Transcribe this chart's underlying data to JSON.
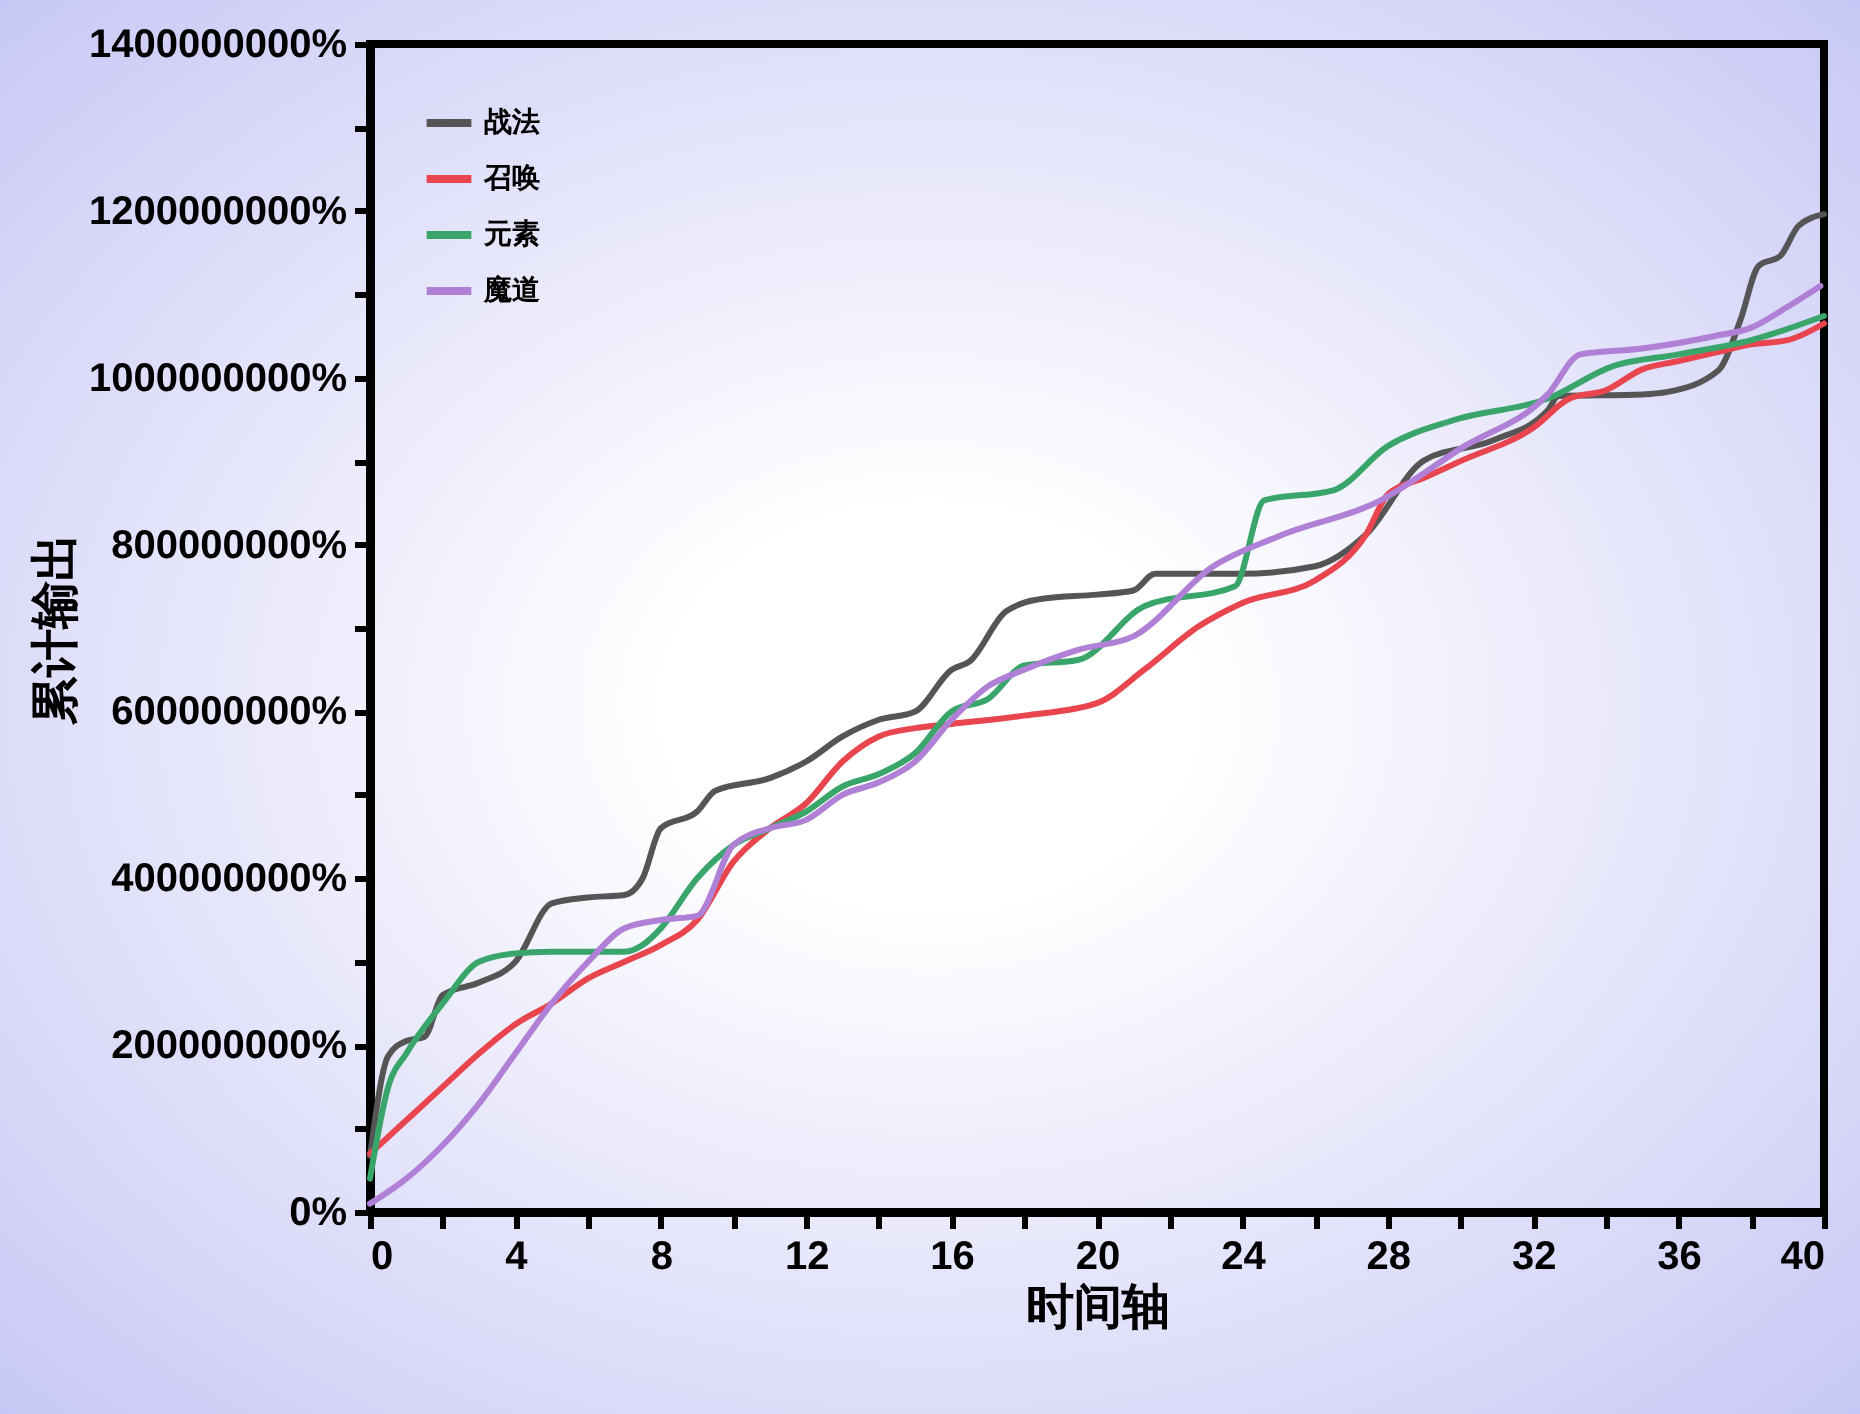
{
  "chart_data": {
    "type": "line",
    "xlabel": "时间轴",
    "ylabel": "累计输出",
    "legend": "top left",
    "grid": false,
    "line_style": "solid",
    "marker": "none",
    "xlim": [
      0,
      40
    ],
    "ylim": [
      0,
      1400000000
    ],
    "xticks": [
      0,
      {
        "value": 2,
        "label": null
      },
      4,
      {
        "value": 6,
        "label": null
      },
      8,
      {
        "value": 10,
        "label": null
      },
      12,
      {
        "value": 14,
        "label": null
      },
      16,
      {
        "value": 18,
        "label": null
      },
      20,
      {
        "value": 22,
        "label": null
      },
      24,
      {
        "value": 26,
        "label": null
      },
      28,
      {
        "value": 30,
        "label": null
      },
      32,
      {
        "value": 34,
        "label": null
      },
      36,
      {
        "value": 38,
        "label": null
      },
      40
    ],
    "yticks": [
      {
        "value": 0,
        "label": "0%"
      },
      {
        "value": 100000000,
        "label": null
      },
      {
        "value": 200000000,
        "label": "200000000%"
      },
      {
        "value": 300000000,
        "label": null
      },
      {
        "value": 400000000,
        "label": "400000000%"
      },
      {
        "value": 500000000,
        "label": null
      },
      {
        "value": 600000000,
        "label": "600000000%"
      },
      {
        "value": 700000000,
        "label": null
      },
      {
        "value": 800000000,
        "label": "800000000%"
      },
      {
        "value": 900000000,
        "label": null
      },
      {
        "value": 1000000000,
        "label": "1000000000%"
      },
      {
        "value": 1100000000,
        "label": null
      },
      {
        "value": 1200000000,
        "label": "1200000000%"
      },
      {
        "value": 1300000000,
        "label": null
      },
      {
        "value": 1400000000,
        "label": "1400000000%"
      }
    ],
    "series": [
      {
        "name": "战法",
        "color": "#555555",
        "x": [
          0,
          0.5,
          1,
          1.5,
          2,
          3,
          4,
          5,
          6,
          7,
          7.5,
          8,
          9,
          9.5,
          11,
          12,
          13,
          14,
          15,
          16,
          16.5,
          17.5,
          18.5,
          20,
          21,
          21.6,
          24,
          26,
          27.4,
          29,
          30.9,
          32.4,
          32.7,
          35,
          35.7,
          37.1,
          37.7,
          38.2,
          38.8,
          39.3,
          40
        ],
        "values": [
          67000000,
          187000000,
          205000000,
          210000000,
          260000000,
          275000000,
          300000000,
          370000000,
          377000000,
          380000000,
          400000000,
          460000000,
          480000000,
          505000000,
          520000000,
          540000000,
          570000000,
          590000000,
          600000000,
          650000000,
          660000000,
          720000000,
          735000000,
          740000000,
          745000000,
          765000000,
          765000000,
          774000000,
          812000000,
          901000000,
          925000000,
          961000000,
          978000000,
          980000000,
          983000000,
          1009000000,
          1069000000,
          1134000000,
          1146000000,
          1182000000,
          1196000000
        ]
      },
      {
        "name": "召唤",
        "color": "#e8454f",
        "x": [
          0,
          1,
          2,
          3,
          4,
          5,
          6,
          7,
          8,
          9,
          10,
          11,
          12,
          13,
          14,
          15,
          16,
          18,
          20,
          21.3,
          22.8,
          24,
          26,
          27.4,
          28,
          29,
          30,
          32,
          33,
          34,
          35,
          36,
          37,
          38,
          39,
          40
        ],
        "values": [
          70000000,
          110000000,
          150000000,
          190000000,
          225000000,
          250000000,
          280000000,
          300000000,
          320000000,
          350000000,
          420000000,
          460000000,
          490000000,
          540000000,
          570000000,
          580000000,
          585000000,
          595000000,
          610000000,
          650000000,
          702000000,
          730000000,
          757000000,
          812000000,
          860000000,
          880000000,
          900000000,
          940000000,
          975000000,
          985000000,
          1010000000,
          1020000000,
          1030000000,
          1040000000,
          1045000000,
          1065000000
        ]
      },
      {
        "name": "元素",
        "color": "#3aa56b",
        "x": [
          0,
          0.5,
          1,
          2,
          3,
          4,
          5,
          6,
          7,
          7.5,
          8,
          9,
          10,
          11,
          12,
          13,
          14,
          15,
          16,
          17,
          18,
          19.5,
          21.3,
          23.8,
          24.6,
          26.5,
          28,
          29.8,
          32.4,
          34.2,
          36,
          38,
          40
        ],
        "values": [
          40000000,
          150000000,
          190000000,
          250000000,
          300000000,
          310000000,
          312000000,
          312000000,
          312000000,
          320000000,
          340000000,
          400000000,
          440000000,
          460000000,
          480000000,
          510000000,
          525000000,
          550000000,
          600000000,
          615000000,
          655000000,
          662000000,
          726000000,
          750000000,
          853000000,
          865000000,
          918000000,
          949000000,
          975000000,
          1014000000,
          1028000000,
          1045000000,
          1074000000
        ]
      },
      {
        "name": "魔道",
        "color": "#b07fd6",
        "x": [
          0,
          1,
          2,
          3,
          4,
          5,
          6,
          7,
          8,
          9,
          10,
          11,
          12,
          13,
          14,
          15,
          16,
          17,
          18,
          19.5,
          21,
          23.2,
          25,
          27.8,
          30,
          32.4,
          33.3,
          35,
          37,
          38,
          39,
          39.9
        ],
        "values": [
          10000000,
          40000000,
          80000000,
          130000000,
          190000000,
          250000000,
          300000000,
          340000000,
          350000000,
          355000000,
          440000000,
          460000000,
          470000000,
          500000000,
          515000000,
          540000000,
          590000000,
          630000000,
          650000000,
          674000000,
          690000000,
          774000000,
          810000000,
          853000000,
          915000000,
          980000000,
          1028000000,
          1035000000,
          1050000000,
          1060000000,
          1085000000,
          1110000000
        ]
      }
    ]
  }
}
